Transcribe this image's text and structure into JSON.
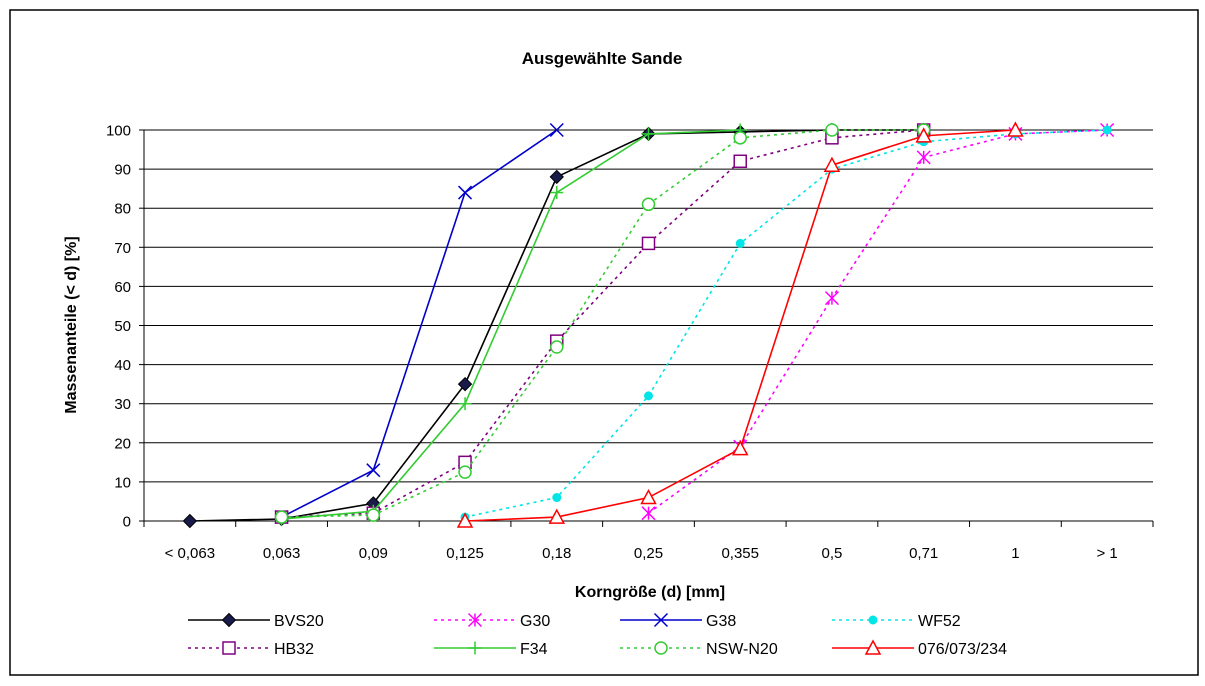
{
  "chart_data": {
    "type": "line",
    "title": "Ausgewählte Sande",
    "xlabel": "Korngröße (d) [mm]",
    "ylabel": "Massenanteile (< d)  [%]",
    "categories": [
      "< 0,063",
      "0,063",
      "0,09",
      "0,125",
      "0,18",
      "0,25",
      "0,355",
      "0,5",
      "0,71",
      "1",
      "> 1"
    ],
    "yticks": [
      "0",
      "10",
      "20",
      "30",
      "40",
      "50",
      "60",
      "70",
      "80",
      "90",
      "100"
    ],
    "ylim": [
      0,
      100
    ],
    "grid": "horizontal",
    "legend_position": "bottom",
    "series": [
      {
        "name": "BVS20",
        "color": "#000000",
        "dash": "solid",
        "marker": "diamond-filled",
        "marker_color": "#1a1a4a",
        "points": [
          [
            0,
            0
          ],
          [
            1,
            0.5
          ],
          [
            2,
            4.5
          ],
          [
            3,
            35
          ],
          [
            4,
            88
          ],
          [
            5,
            99
          ],
          [
            6,
            99.5
          ],
          [
            7,
            100
          ],
          [
            8,
            100
          ]
        ]
      },
      {
        "name": "G30",
        "color": "#ff00ff",
        "dash": "dotted",
        "marker": "asterisk",
        "marker_color": "#ff00ff",
        "points": [
          [
            5,
            2
          ],
          [
            6,
            19
          ],
          [
            7,
            57
          ],
          [
            8,
            93
          ],
          [
            9,
            99
          ],
          [
            10,
            100
          ]
        ]
      },
      {
        "name": "G38",
        "color": "#0000cc",
        "dash": "solid",
        "marker": "x",
        "marker_color": "#0000cc",
        "points": [
          [
            1,
            1
          ],
          [
            2,
            13
          ],
          [
            3,
            84
          ],
          [
            4,
            100
          ]
        ]
      },
      {
        "name": "WF52",
        "color": "#00e5e5",
        "dash": "dotted",
        "marker": "dot",
        "marker_color": "#00e5e5",
        "points": [
          [
            3,
            1
          ],
          [
            4,
            6
          ],
          [
            5,
            32
          ],
          [
            6,
            71
          ],
          [
            7,
            90
          ],
          [
            8,
            97
          ],
          [
            9,
            99
          ],
          [
            10,
            100
          ]
        ]
      },
      {
        "name": "HB32",
        "color": "#800080",
        "dash": "dotted",
        "marker": "square-open",
        "marker_color": "#800080",
        "points": [
          [
            1,
            1
          ],
          [
            2,
            2
          ],
          [
            3,
            15
          ],
          [
            4,
            46
          ],
          [
            5,
            71
          ],
          [
            6,
            92
          ],
          [
            7,
            98
          ],
          [
            8,
            100
          ]
        ]
      },
      {
        "name": "F34",
        "color": "#33cc33",
        "dash": "solid",
        "marker": "plus",
        "marker_color": "#33cc33",
        "points": [
          [
            1,
            0.5
          ],
          [
            2,
            2.5
          ],
          [
            3,
            30
          ],
          [
            4,
            84
          ],
          [
            5,
            99
          ],
          [
            6,
            100
          ]
        ]
      },
      {
        "name": "NSW-N20",
        "color": "#33cc33",
        "dash": "dotted",
        "marker": "circle-open",
        "marker_color": "#33cc33",
        "points": [
          [
            1,
            1
          ],
          [
            2,
            1.5
          ],
          [
            3,
            12.5
          ],
          [
            4,
            44.5
          ],
          [
            5,
            81
          ],
          [
            6,
            98
          ],
          [
            7,
            100
          ],
          [
            8,
            100
          ]
        ]
      },
      {
        "name": "076/073/234",
        "color": "#ff0000",
        "dash": "solid",
        "marker": "triangle-open",
        "marker_color": "#ff0000",
        "points": [
          [
            3,
            0
          ],
          [
            4,
            1
          ],
          [
            5,
            6
          ],
          [
            6,
            18.5
          ],
          [
            7,
            91
          ],
          [
            8,
            98.5
          ],
          [
            9,
            100
          ]
        ]
      }
    ]
  }
}
